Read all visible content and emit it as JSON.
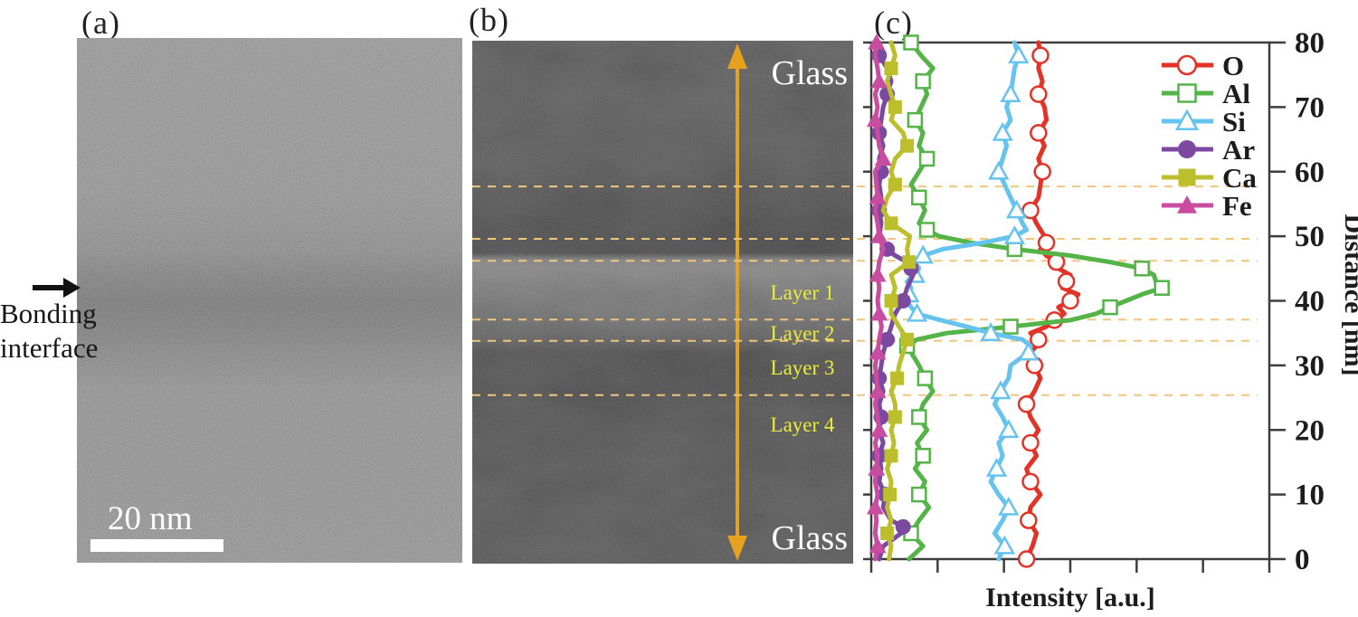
{
  "figure": {
    "panels": {
      "a": {
        "label": "(a)",
        "scale_bar": "20 nm",
        "annotation": {
          "line1": "Bonding",
          "line2": "interface"
        }
      },
      "b": {
        "label": "(b)",
        "glass_top": "Glass",
        "glass_bottom": "Glass",
        "layers": [
          "Layer 1",
          "Layer 2",
          "Layer 3",
          "Layer 4"
        ]
      },
      "c": {
        "label": "(c)"
      }
    }
  },
  "colors": {
    "guide_dash": "#f2c57c",
    "profile_arrow": "#e6a11f",
    "layer_label": "#ebeb3c",
    "axis": "#3e3e3e",
    "text": "#1c1c1c"
  },
  "chart_data": {
    "type": "line",
    "title": "",
    "xlabel": "Intensity [a.u.]",
    "ylabel": "Distance [nm]",
    "ylim": [
      0,
      80
    ],
    "yticks": [
      0,
      10,
      20,
      30,
      40,
      50,
      60,
      70,
      80
    ],
    "xticks_unlabeled_count": 7,
    "x_axis_numeric": false,
    "grid": false,
    "legend_position": "top-right-inside",
    "dashed_guides_nm": [
      57.7,
      49.6,
      46.2,
      37.1,
      33.8,
      25.4
    ],
    "series": [
      {
        "name": "O",
        "color": "#e53227",
        "marker": "circle",
        "filled": false,
        "marker_offset": 0,
        "points": [
          [
            0,
            0.39
          ],
          [
            2,
            0.405
          ],
          [
            4,
            0.415
          ],
          [
            6,
            0.395
          ],
          [
            8,
            0.4
          ],
          [
            10,
            0.425
          ],
          [
            12,
            0.4
          ],
          [
            14,
            0.39
          ],
          [
            16,
            0.415
          ],
          [
            18,
            0.4
          ],
          [
            20,
            0.42
          ],
          [
            22,
            0.4
          ],
          [
            24,
            0.39
          ],
          [
            26,
            0.41
          ],
          [
            28,
            0.425
          ],
          [
            30,
            0.41
          ],
          [
            32,
            0.4
          ],
          [
            33,
            0.415
          ],
          [
            34,
            0.42
          ],
          [
            35,
            0.4
          ],
          [
            36,
            0.44
          ],
          [
            37,
            0.46
          ],
          [
            38,
            0.485
          ],
          [
            39,
            0.47
          ],
          [
            40,
            0.5
          ],
          [
            41,
            0.52
          ],
          [
            42,
            0.48
          ],
          [
            43,
            0.49
          ],
          [
            44,
            0.5
          ],
          [
            45,
            0.47
          ],
          [
            46,
            0.465
          ],
          [
            47,
            0.44
          ],
          [
            48,
            0.425
          ],
          [
            49,
            0.44
          ],
          [
            50,
            0.435
          ],
          [
            52,
            0.415
          ],
          [
            54,
            0.4
          ],
          [
            56,
            0.42
          ],
          [
            58,
            0.425
          ],
          [
            60,
            0.43
          ],
          [
            62,
            0.42
          ],
          [
            64,
            0.435
          ],
          [
            66,
            0.42
          ],
          [
            68,
            0.44
          ],
          [
            70,
            0.435
          ],
          [
            72,
            0.42
          ],
          [
            74,
            0.43
          ],
          [
            76,
            0.42
          ],
          [
            78,
            0.425
          ],
          [
            80,
            0.42
          ]
        ]
      },
      {
        "name": "Al",
        "color": "#54b448",
        "marker": "square",
        "filled": false,
        "marker_offset": 2,
        "points": [
          [
            0,
            0.095
          ],
          [
            2,
            0.13
          ],
          [
            4,
            0.1
          ],
          [
            6,
            0.12
          ],
          [
            8,
            0.145
          ],
          [
            10,
            0.12
          ],
          [
            12,
            0.135
          ],
          [
            14,
            0.11
          ],
          [
            16,
            0.13
          ],
          [
            18,
            0.115
          ],
          [
            20,
            0.14
          ],
          [
            22,
            0.12
          ],
          [
            24,
            0.13
          ],
          [
            26,
            0.155
          ],
          [
            28,
            0.135
          ],
          [
            30,
            0.12
          ],
          [
            32,
            0.1
          ],
          [
            33,
            0.09
          ],
          [
            34,
            0.115
          ],
          [
            35,
            0.19
          ],
          [
            36,
            0.35
          ],
          [
            37,
            0.5
          ],
          [
            38,
            0.565
          ],
          [
            39,
            0.6
          ],
          [
            40,
            0.64
          ],
          [
            41,
            0.68
          ],
          [
            42,
            0.73
          ],
          [
            43,
            0.715
          ],
          [
            44,
            0.71
          ],
          [
            45,
            0.68
          ],
          [
            46,
            0.6
          ],
          [
            47,
            0.5
          ],
          [
            48,
            0.36
          ],
          [
            49,
            0.25
          ],
          [
            50,
            0.17
          ],
          [
            51,
            0.14
          ],
          [
            52,
            0.12
          ],
          [
            54,
            0.135
          ],
          [
            56,
            0.12
          ],
          [
            58,
            0.1
          ],
          [
            60,
            0.12
          ],
          [
            62,
            0.14
          ],
          [
            64,
            0.12
          ],
          [
            66,
            0.13
          ],
          [
            68,
            0.11
          ],
          [
            70,
            0.125
          ],
          [
            72,
            0.14
          ],
          [
            74,
            0.13
          ],
          [
            76,
            0.155
          ],
          [
            78,
            0.125
          ],
          [
            80,
            0.1
          ]
        ]
      },
      {
        "name": "Si",
        "color": "#66c3ef",
        "marker": "triangle",
        "filled": false,
        "marker_offset": 1,
        "points": [
          [
            0,
            0.32
          ],
          [
            2,
            0.335
          ],
          [
            4,
            0.31
          ],
          [
            6,
            0.33
          ],
          [
            8,
            0.345
          ],
          [
            10,
            0.32
          ],
          [
            12,
            0.3
          ],
          [
            14,
            0.315
          ],
          [
            16,
            0.33
          ],
          [
            18,
            0.32
          ],
          [
            20,
            0.345
          ],
          [
            22,
            0.33
          ],
          [
            24,
            0.31
          ],
          [
            26,
            0.325
          ],
          [
            28,
            0.345
          ],
          [
            30,
            0.35
          ],
          [
            32,
            0.395
          ],
          [
            33,
            0.4
          ],
          [
            34,
            0.38
          ],
          [
            35,
            0.3
          ],
          [
            36,
            0.24
          ],
          [
            37,
            0.175
          ],
          [
            38,
            0.115
          ],
          [
            39,
            0.1
          ],
          [
            40,
            0.09
          ],
          [
            41,
            0.095
          ],
          [
            42,
            0.1
          ],
          [
            43,
            0.09
          ],
          [
            44,
            0.11
          ],
          [
            45,
            0.12
          ],
          [
            46,
            0.11
          ],
          [
            47,
            0.13
          ],
          [
            48,
            0.18
          ],
          [
            49,
            0.28
          ],
          [
            50,
            0.36
          ],
          [
            51,
            0.39
          ],
          [
            52,
            0.38
          ],
          [
            54,
            0.365
          ],
          [
            56,
            0.35
          ],
          [
            58,
            0.335
          ],
          [
            60,
            0.32
          ],
          [
            62,
            0.33
          ],
          [
            64,
            0.34
          ],
          [
            66,
            0.33
          ],
          [
            68,
            0.35
          ],
          [
            70,
            0.34
          ],
          [
            72,
            0.35
          ],
          [
            74,
            0.355
          ],
          [
            76,
            0.36
          ],
          [
            78,
            0.37
          ],
          [
            80,
            0.36
          ]
        ]
      },
      {
        "name": "Ar",
        "color": "#7b4aa0",
        "marker": "circle",
        "filled": true,
        "marker_offset": 3,
        "points": [
          [
            0,
            0.02
          ],
          [
            2,
            0.03
          ],
          [
            4,
            0.075
          ],
          [
            5,
            0.08
          ],
          [
            6,
            0.05
          ],
          [
            8,
            0.03
          ],
          [
            10,
            0.035
          ],
          [
            12,
            0.02
          ],
          [
            14,
            0.025
          ],
          [
            16,
            0.02
          ],
          [
            18,
            0.03
          ],
          [
            20,
            0.02
          ],
          [
            22,
            0.025
          ],
          [
            24,
            0.02
          ],
          [
            26,
            0.03
          ],
          [
            28,
            0.02
          ],
          [
            30,
            0.025
          ],
          [
            32,
            0.03
          ],
          [
            34,
            0.04
          ],
          [
            36,
            0.05
          ],
          [
            38,
            0.06
          ],
          [
            40,
            0.08
          ],
          [
            42,
            0.09
          ],
          [
            44,
            0.105
          ],
          [
            45,
            0.1
          ],
          [
            46,
            0.09
          ],
          [
            47,
            0.06
          ],
          [
            48,
            0.04
          ],
          [
            50,
            0.02
          ],
          [
            52,
            0.025
          ],
          [
            54,
            0.02
          ],
          [
            56,
            0.025
          ],
          [
            58,
            0.02
          ],
          [
            60,
            0.025
          ],
          [
            62,
            0.02
          ],
          [
            64,
            0.03
          ],
          [
            66,
            0.02
          ],
          [
            68,
            0.025
          ],
          [
            70,
            0.03
          ],
          [
            72,
            0.04
          ],
          [
            74,
            0.05
          ],
          [
            76,
            0.04
          ],
          [
            78,
            0.02
          ],
          [
            80,
            0.02
          ]
        ]
      },
      {
        "name": "Ca",
        "color": "#bcbe2c",
        "marker": "square",
        "filled": true,
        "marker_offset": 2,
        "points": [
          [
            0,
            0.045
          ],
          [
            2,
            0.05
          ],
          [
            4,
            0.04
          ],
          [
            6,
            0.05
          ],
          [
            8,
            0.04
          ],
          [
            10,
            0.047
          ],
          [
            12,
            0.05
          ],
          [
            14,
            0.04
          ],
          [
            16,
            0.05
          ],
          [
            18,
            0.057
          ],
          [
            20,
            0.05
          ],
          [
            22,
            0.06
          ],
          [
            24,
            0.06
          ],
          [
            26,
            0.05
          ],
          [
            28,
            0.065
          ],
          [
            30,
            0.07
          ],
          [
            32,
            0.08
          ],
          [
            34,
            0.09
          ],
          [
            36,
            0.07
          ],
          [
            38,
            0.05
          ],
          [
            40,
            0.05
          ],
          [
            42,
            0.06
          ],
          [
            44,
            0.05
          ],
          [
            46,
            0.095
          ],
          [
            48,
            0.09
          ],
          [
            50,
            0.097
          ],
          [
            52,
            0.05
          ],
          [
            54,
            0.03
          ],
          [
            56,
            0.04
          ],
          [
            58,
            0.06
          ],
          [
            60,
            0.05
          ],
          [
            62,
            0.06
          ],
          [
            64,
            0.09
          ],
          [
            66,
            0.08
          ],
          [
            68,
            0.05
          ],
          [
            70,
            0.06
          ],
          [
            72,
            0.05
          ],
          [
            74,
            0.04
          ],
          [
            76,
            0.05
          ],
          [
            78,
            0.06
          ],
          [
            80,
            0.05
          ]
        ]
      },
      {
        "name": "Fe",
        "color": "#c84da1",
        "marker": "triangle",
        "filled": true,
        "marker_offset": 1,
        "points": [
          [
            0,
            0.01
          ],
          [
            2,
            0.016
          ],
          [
            4,
            0.01
          ],
          [
            6,
            0.013
          ],
          [
            8,
            0.01
          ],
          [
            10,
            0.016
          ],
          [
            12,
            0.01
          ],
          [
            14,
            0.013
          ],
          [
            16,
            0.016
          ],
          [
            18,
            0.01
          ],
          [
            20,
            0.02
          ],
          [
            22,
            0.016
          ],
          [
            24,
            0.01
          ],
          [
            26,
            0.016
          ],
          [
            28,
            0.013
          ],
          [
            30,
            0.01
          ],
          [
            32,
            0.016
          ],
          [
            34,
            0.02
          ],
          [
            36,
            0.026
          ],
          [
            38,
            0.02
          ],
          [
            40,
            0.016
          ],
          [
            42,
            0.02
          ],
          [
            44,
            0.016
          ],
          [
            46,
            0.02
          ],
          [
            48,
            0.03
          ],
          [
            50,
            0.02
          ],
          [
            52,
            0.016
          ],
          [
            54,
            0.01
          ],
          [
            56,
            0.016
          ],
          [
            58,
            0.013
          ],
          [
            60,
            0.01
          ],
          [
            62,
            0.03
          ],
          [
            64,
            0.02
          ],
          [
            66,
            0.016
          ],
          [
            68,
            0.01
          ],
          [
            70,
            0.016
          ],
          [
            72,
            0.01
          ],
          [
            74,
            0.02
          ],
          [
            76,
            0.016
          ],
          [
            78,
            0.01
          ],
          [
            80,
            0.013
          ]
        ]
      }
    ]
  }
}
